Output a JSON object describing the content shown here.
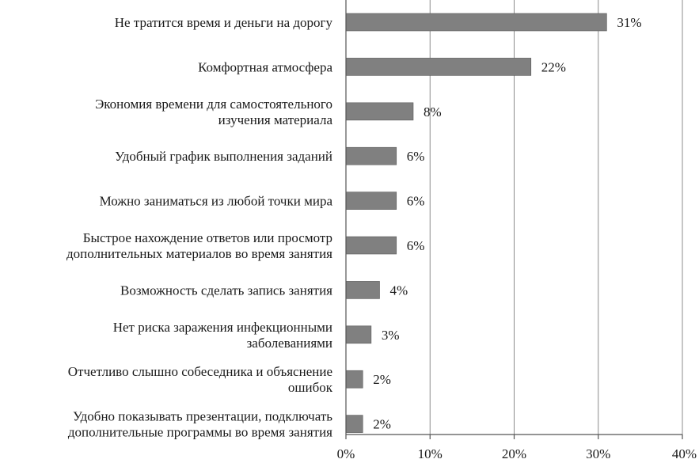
{
  "chart_data": {
    "type": "bar",
    "orientation": "horizontal",
    "categories": [
      [
        "Не тратится время и деньги на дорогу"
      ],
      [
        "Комфортная атмосфера"
      ],
      [
        "Экономия времени для самостоятельного",
        "изучения материала"
      ],
      [
        "Удобный график выполнения заданий"
      ],
      [
        "Можно заниматься из любой точки мира"
      ],
      [
        "Быстрое нахождение ответов или просмотр",
        "дополнительных материалов во время занятия"
      ],
      [
        "Возможность сделать запись занятия"
      ],
      [
        "Нет риска заражения инфекционными",
        "заболеваниями"
      ],
      [
        "Отчетливо слышно собеседника и объяснение",
        "ошибок"
      ],
      [
        "Удобно показывать презентации, подключать",
        "дополнительные программы во время занятия"
      ]
    ],
    "values": [
      31,
      22,
      8,
      6,
      6,
      6,
      4,
      3,
      2,
      2
    ],
    "value_labels": [
      "31%",
      "22%",
      "8%",
      "6%",
      "6%",
      "6%",
      "4%",
      "3%",
      "2%",
      "2%"
    ],
    "x_ticks": [
      0,
      10,
      20,
      30,
      40
    ],
    "x_tick_labels": [
      "0%",
      "10%",
      "20%",
      "30%",
      "40%"
    ],
    "xlim": [
      0,
      40
    ],
    "grid": true,
    "legend": "none",
    "colors": {
      "bar": "#808080",
      "grid": "#8c8c8c",
      "text": "#1a1a1a"
    }
  }
}
